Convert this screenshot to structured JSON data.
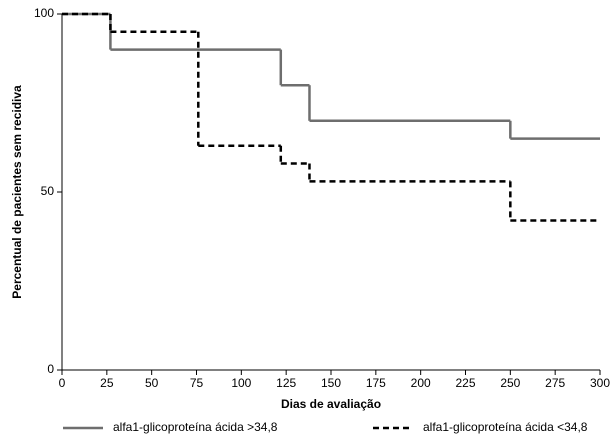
{
  "chart_data": {
    "type": "step",
    "xlabel": "Dias de avaliação",
    "ylabel": "Percentual de pacientes sem recidiva",
    "xlim": [
      0,
      300
    ],
    "xticks": [
      0,
      25,
      50,
      75,
      100,
      125,
      150,
      175,
      200,
      225,
      250,
      275,
      300
    ],
    "ylim": [
      0,
      100
    ],
    "yticks": [
      0,
      50,
      100
    ],
    "grid": false,
    "legend": "bottom",
    "series": [
      {
        "name": "alfa1-glicoproteína ácida >34,8",
        "color": "#6e6e6e",
        "dash": "solid",
        "x": [
          0,
          27,
          122,
          138,
          250
        ],
        "values": [
          100,
          90,
          80,
          70,
          65
        ]
      },
      {
        "name": "alfa1-glicoproteína ácida <34,8",
        "color": "#000000",
        "dash": "dashed",
        "x": [
          0,
          27,
          76,
          122,
          138,
          250
        ],
        "values": [
          100,
          95,
          63,
          58,
          53,
          42
        ]
      }
    ]
  }
}
